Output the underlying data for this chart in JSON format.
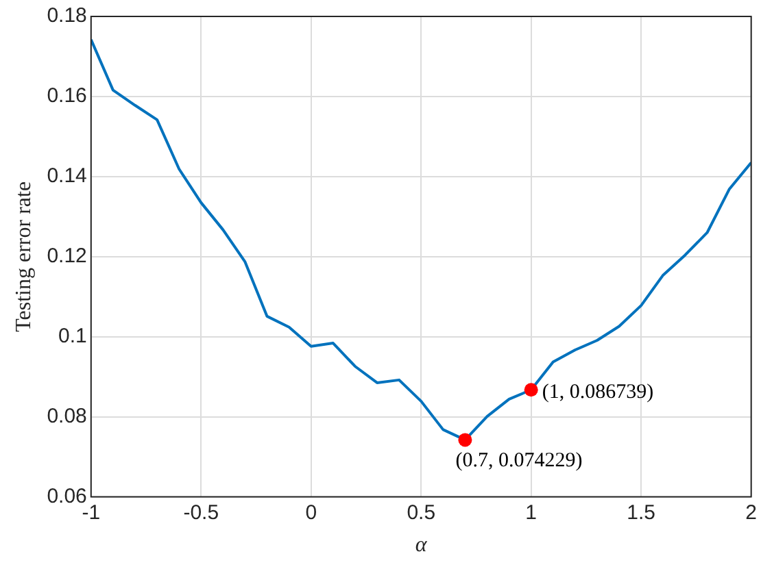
{
  "chart_data": {
    "type": "line",
    "xlabel": "α",
    "ylabel": "Testing error rate",
    "x": [
      -1,
      -0.9,
      -0.8,
      -0.7,
      -0.6,
      -0.5,
      -0.4,
      -0.3,
      -0.2,
      -0.1,
      0,
      0.1,
      0.2,
      0.3,
      0.4,
      0.5,
      0.6,
      0.7,
      0.8,
      0.9,
      1,
      1.1,
      1.2,
      1.3,
      1.4,
      1.5,
      1.6,
      1.7,
      1.8,
      1.9,
      2
    ],
    "series": [
      {
        "color": "#0072bd",
        "marker": "none",
        "values": [
          0.1742,
          0.1616,
          0.1578,
          0.1542,
          0.1419,
          0.1335,
          0.1267,
          0.1187,
          0.1051,
          0.1024,
          0.0976,
          0.0984,
          0.0926,
          0.0885,
          0.0892,
          0.0839,
          0.0768,
          0.074229,
          0.0801,
          0.0844,
          0.086739,
          0.0937,
          0.0967,
          0.0991,
          0.1026,
          0.1078,
          0.1154,
          0.1204,
          0.126,
          0.1368,
          0.1435
        ]
      },
      {
        "type": "scatter",
        "color": "#ff0000",
        "marker": "circle",
        "x": [
          0.7,
          1
        ],
        "values": [
          0.074229,
          0.086739
        ]
      }
    ],
    "annotations": [
      {
        "text": "(0.7, 0.074229)",
        "x": 0.7,
        "y": 0.074229
      },
      {
        "text": "(1, 0.086739)",
        "x": 1,
        "y": 0.086739
      }
    ],
    "xlim": [
      -1,
      2
    ],
    "xticks": [
      -1,
      -0.5,
      0,
      0.5,
      1,
      1.5,
      2
    ],
    "ylim": [
      0.06,
      0.18
    ],
    "yticks": [
      0.06,
      0.08,
      0.1,
      0.12,
      0.14,
      0.16,
      0.18
    ],
    "grid": true,
    "legend": false
  }
}
